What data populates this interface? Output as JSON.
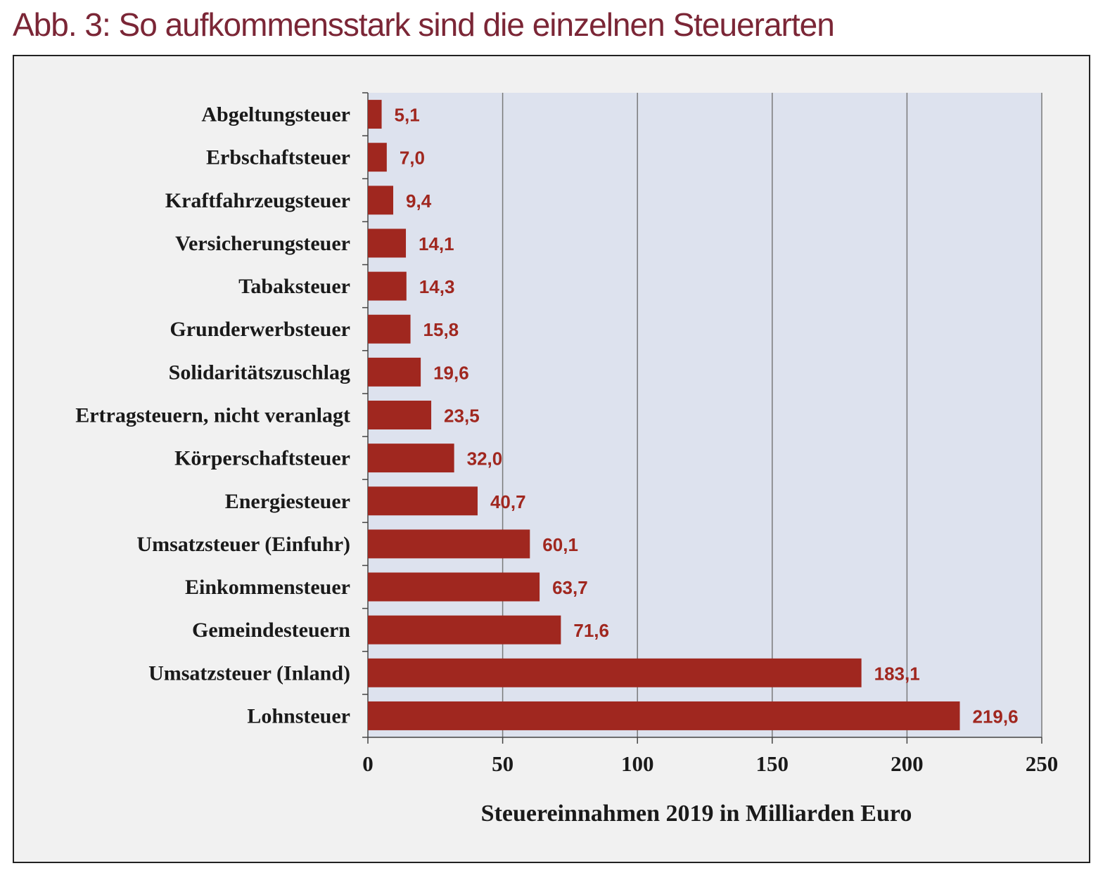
{
  "figure": {
    "title": "Abb. 3: So aufkommensstark sind die einzelnen Steuerarten",
    "title_color": "#7b2636"
  },
  "chart_data": {
    "type": "bar",
    "orientation": "horizontal",
    "categories": [
      "Abgeltungsteuer",
      "Erbschaftsteuer",
      "Kraftfahrzeugsteuer",
      "Versicherungsteuer",
      "Tabaksteuer",
      "Grunderwerbsteuer",
      "Solidaritätszuschlag",
      "Ertragsteuern, nicht veranlagt",
      "Körperschaftsteuer",
      "Energiesteuer",
      "Umsatzsteuer (Einfuhr)",
      "Einkommensteuer",
      "Gemeindesteuern",
      "Umsatzsteuer (Inland)",
      "Lohnsteuer"
    ],
    "values": [
      5.1,
      7.0,
      9.4,
      14.1,
      14.3,
      15.8,
      19.6,
      23.5,
      32.0,
      40.7,
      60.1,
      63.7,
      71.6,
      183.1,
      219.6
    ],
    "data_labels": [
      "5,1",
      "7,0",
      "9,4",
      "14,1",
      "14,3",
      "15,8",
      "19,6",
      "23,5",
      "32,0",
      "40,7",
      "60,1",
      "63,7",
      "71,6",
      "183,1",
      "219,6"
    ],
    "xlabel": "Steuereinnahmen 2019 in Milliarden Euro",
    "ylabel": "",
    "xlim": [
      0,
      250
    ],
    "xticks": [
      0,
      50,
      100,
      150,
      200,
      250
    ],
    "xtick_labels": [
      "0",
      "50",
      "100",
      "150",
      "200",
      "250"
    ],
    "grid": "vertical",
    "legend": "none",
    "colors": {
      "bar": "#a0271f",
      "data_label": "#a0271f",
      "plot_background": "#dde2ee",
      "frame_background": "#f1f1f1",
      "gridline": "#7a7a7a",
      "text": "#1a1a1a"
    }
  }
}
